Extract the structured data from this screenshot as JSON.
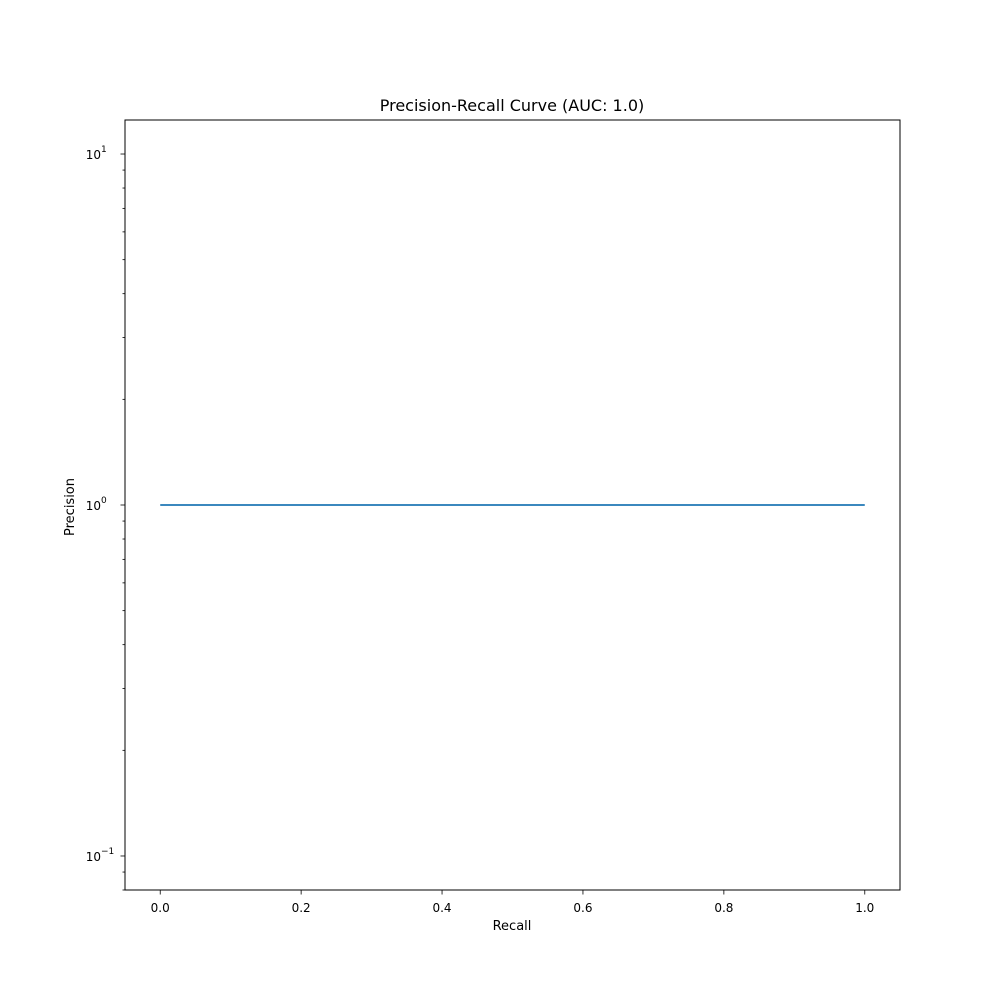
{
  "chart_data": {
    "type": "line",
    "title": "Precision-Recall Curve (AUC: 1.0)",
    "xlabel": "Recall",
    "ylabel": "Precision",
    "xscale": "linear",
    "yscale": "log",
    "xlim": [
      -0.05,
      1.05
    ],
    "ylim": [
      0.08,
      12.5
    ],
    "grid": false,
    "legend": "none",
    "x_ticks": [
      {
        "value": 0.0,
        "label": "0.0"
      },
      {
        "value": 0.2,
        "label": "0.2"
      },
      {
        "value": 0.4,
        "label": "0.4"
      },
      {
        "value": 0.6,
        "label": "0.6"
      },
      {
        "value": 0.8,
        "label": "0.8"
      },
      {
        "value": 1.0,
        "label": "1.0"
      }
    ],
    "y_ticks": [
      {
        "value": 0.1,
        "base": "10",
        "exponent": "−1"
      },
      {
        "value": 1,
        "base": "10",
        "exponent": "0"
      },
      {
        "value": 10,
        "base": "10",
        "exponent": "1"
      }
    ],
    "line_color": "#1f77b4",
    "series": [
      {
        "x": [
          0.0,
          1.0
        ],
        "y": [
          1.0,
          1.0
        ]
      }
    ]
  }
}
